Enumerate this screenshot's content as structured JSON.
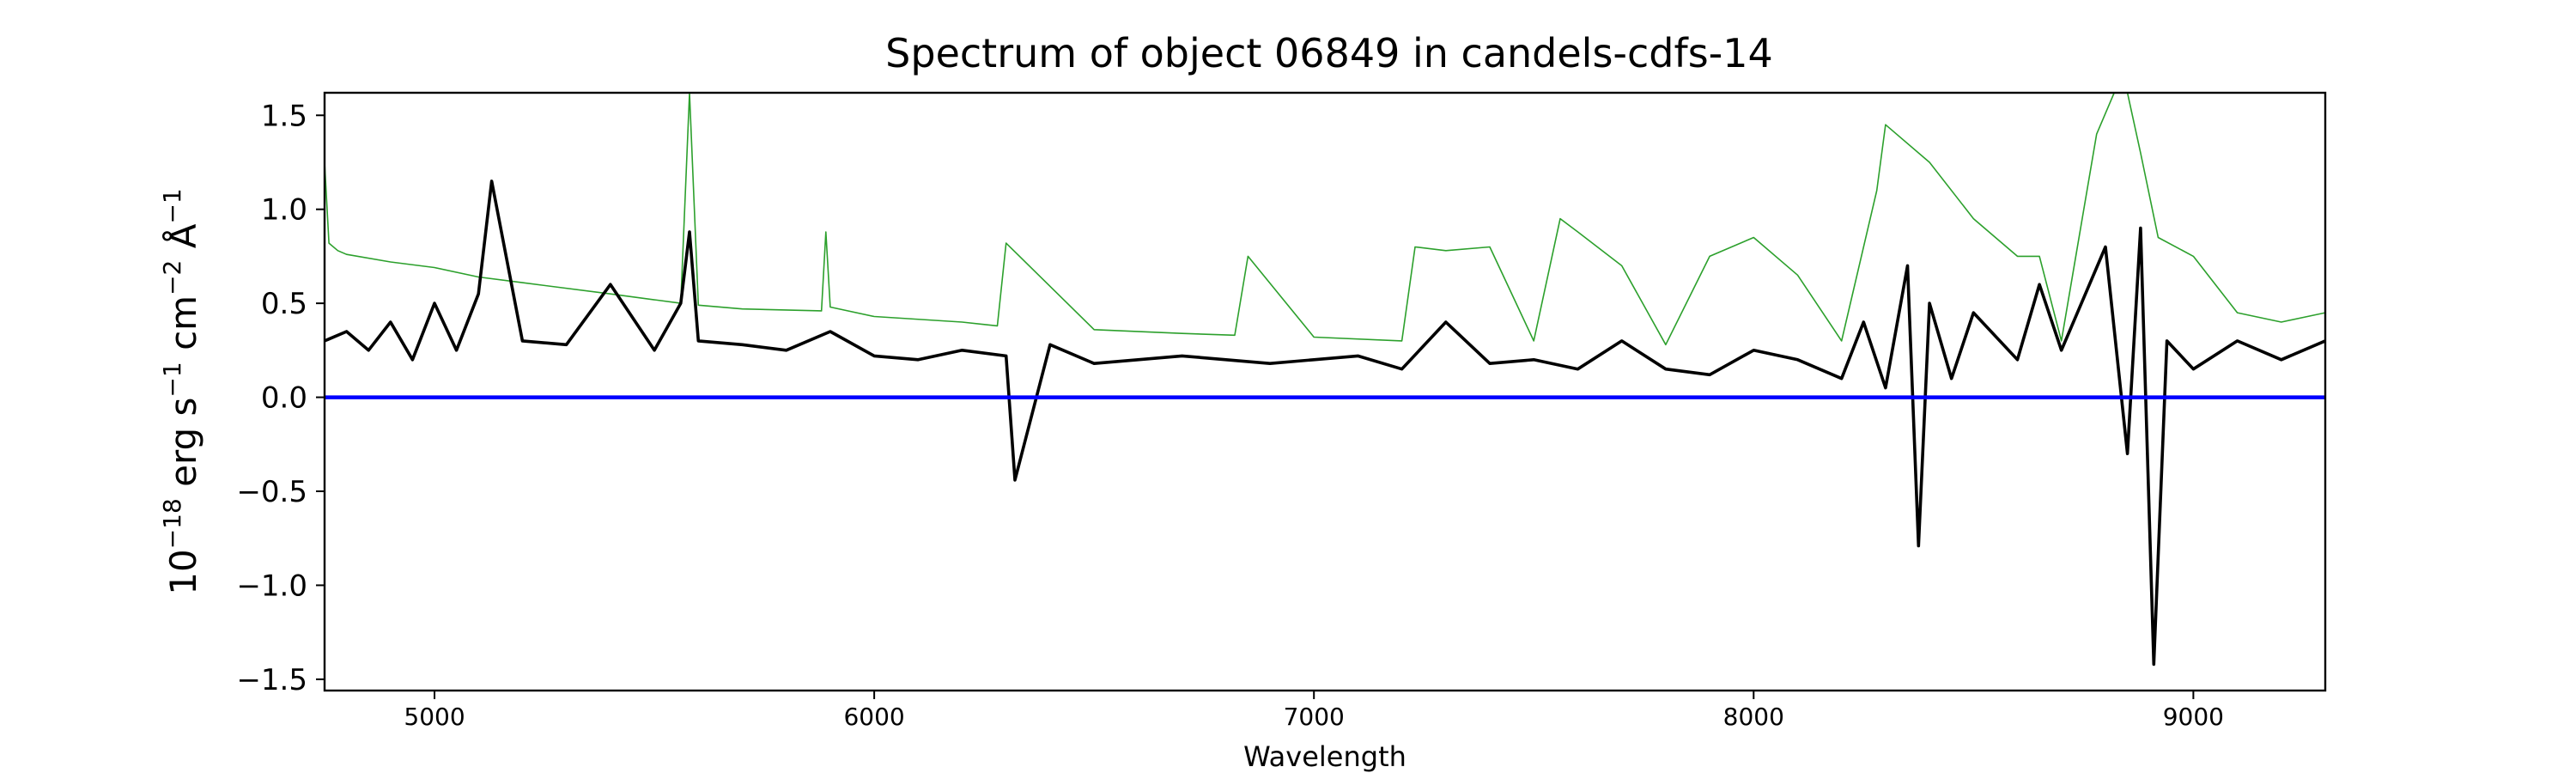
{
  "chart_data": {
    "type": "line",
    "title": "Spectrum of object 06849 in candels-cdfs-14",
    "xlabel": "Wavelength",
    "ylabel": "10^-18 erg s^-1 cm^-2 Å^-1",
    "ylabel_parts": {
      "base": "10",
      "exp1": "−18",
      "mid1": " erg s",
      "exp2": "−1",
      "mid2": " cm",
      "exp3": "−2",
      "mid3": " Å",
      "exp4": "−1"
    },
    "xlim": [
      4750,
      9300
    ],
    "ylim": [
      -1.56,
      1.62
    ],
    "xticks": [
      5000,
      6000,
      7000,
      8000,
      9000
    ],
    "xtick_labels": [
      "5000",
      "6000",
      "7000",
      "8000",
      "9000"
    ],
    "yticks": [
      -1.5,
      -1.0,
      -0.5,
      0.0,
      0.5,
      1.0,
      1.5
    ],
    "ytick_labels": [
      "−1.5",
      "−1.0",
      "−0.5",
      "0.0",
      "0.5",
      "1.0",
      "1.5"
    ],
    "grid": false,
    "series": [
      {
        "color": "#2ca02c",
        "style": "thin line",
        "x": [
          4750,
          4760,
          4780,
          4800,
          4900,
          5000,
          5100,
          5200,
          5400,
          5560,
          5580,
          5600,
          5700,
          5880,
          5890,
          5900,
          6000,
          6200,
          6280,
          6300,
          6500,
          6700,
          6820,
          6850,
          7000,
          7200,
          7230,
          7300,
          7400,
          7500,
          7560,
          7600,
          7700,
          7800,
          7900,
          8000,
          8100,
          8200,
          8280,
          8300,
          8400,
          8500,
          8600,
          8650,
          8700,
          8780,
          8820,
          8850,
          8880,
          8920,
          9000,
          9100,
          9200,
          9300
        ],
        "y": [
          1.25,
          0.82,
          0.78,
          0.76,
          0.72,
          0.69,
          0.64,
          0.61,
          0.55,
          0.5,
          1.62,
          0.49,
          0.47,
          0.46,
          0.88,
          0.48,
          0.43,
          0.4,
          0.38,
          0.82,
          0.36,
          0.34,
          0.33,
          0.75,
          0.32,
          0.3,
          0.8,
          0.78,
          0.8,
          0.3,
          0.95,
          0.88,
          0.7,
          0.28,
          0.75,
          0.85,
          0.65,
          0.3,
          1.1,
          1.45,
          1.25,
          0.95,
          0.75,
          0.75,
          0.3,
          1.4,
          1.62,
          1.62,
          1.3,
          0.85,
          0.75,
          0.45,
          0.4,
          0.45
        ]
      },
      {
        "color": "#000000",
        "style": "line",
        "x": [
          4750,
          4800,
          4850,
          4900,
          4950,
          5000,
          5050,
          5100,
          5130,
          5200,
          5300,
          5400,
          5500,
          5560,
          5580,
          5600,
          5700,
          5800,
          5900,
          6000,
          6100,
          6200,
          6300,
          6320,
          6400,
          6500,
          6600,
          6700,
          6800,
          6900,
          7000,
          7100,
          7200,
          7300,
          7400,
          7500,
          7600,
          7700,
          7800,
          7900,
          8000,
          8100,
          8200,
          8250,
          8300,
          8350,
          8375,
          8400,
          8450,
          8500,
          8600,
          8650,
          8700,
          8800,
          8850,
          8880,
          8910,
          8940,
          9000,
          9100,
          9200,
          9300
        ],
        "y": [
          0.3,
          0.35,
          0.25,
          0.4,
          0.2,
          0.5,
          0.25,
          0.55,
          1.15,
          0.3,
          0.28,
          0.6,
          0.25,
          0.5,
          0.88,
          0.3,
          0.28,
          0.25,
          0.35,
          0.22,
          0.2,
          0.25,
          0.22,
          -0.44,
          0.28,
          0.18,
          0.2,
          0.22,
          0.2,
          0.18,
          0.2,
          0.22,
          0.15,
          0.4,
          0.18,
          0.2,
          0.15,
          0.3,
          0.15,
          0.12,
          0.25,
          0.2,
          0.1,
          0.4,
          0.05,
          0.7,
          -0.79,
          0.5,
          0.1,
          0.45,
          0.2,
          0.6,
          0.25,
          0.8,
          -0.3,
          0.9,
          -1.42,
          0.3,
          0.15,
          0.3,
          0.2,
          0.3
        ]
      },
      {
        "color": "#0000ff",
        "style": "thick line",
        "x": [
          4750,
          9300
        ],
        "y": [
          0.0,
          0.0
        ]
      }
    ]
  }
}
